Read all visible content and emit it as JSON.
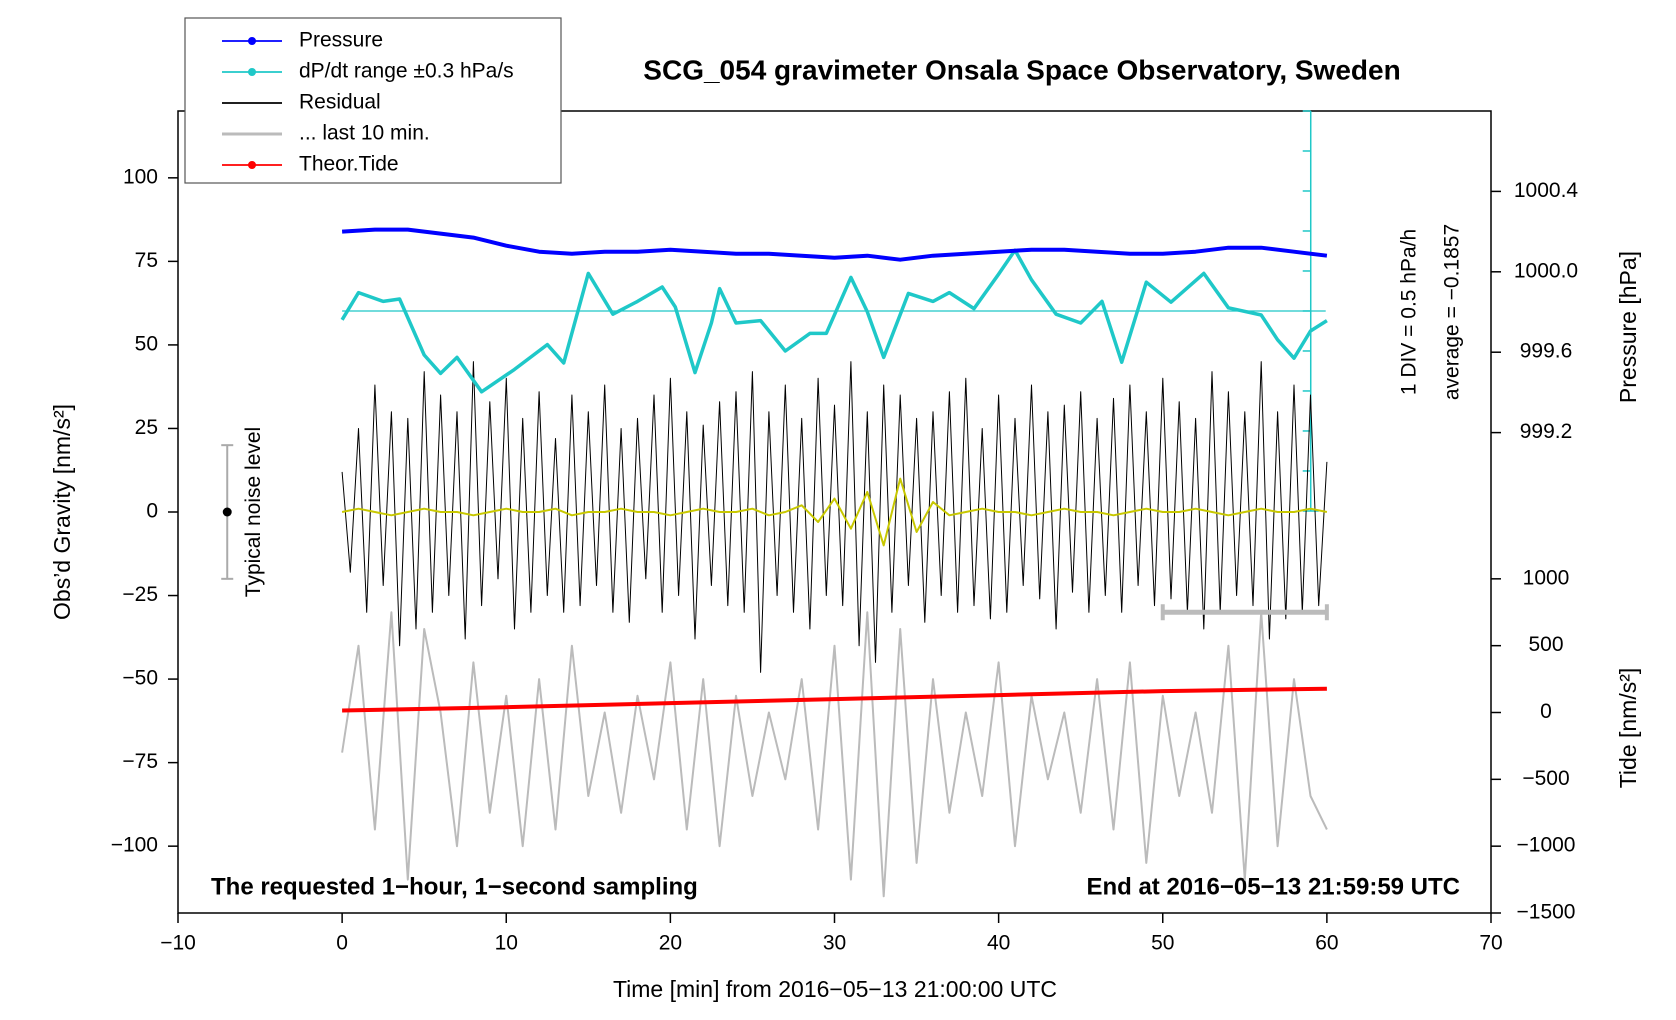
{
  "chart_data": {
    "type": "line",
    "title": "SCG_054 gravimeter Onsala Space Observatory, Sweden",
    "x_label": "Time [min] from 2016−05−13 21:00:00 UTC",
    "y_label": "Obs’d Gravity [nm/s²]",
    "y2_label": "Pressure [hPa]",
    "y3_label": "Tide [nm/s²]",
    "annotations": [
      "The requested 1−hour, 1−second sampling",
      "End at 2016−05−13 21:59:59 UTC",
      "1 DIV = 0.5 hPa/h",
      "average = −0.1857"
    ],
    "xlim": [
      -10,
      70
    ],
    "xticks": [
      {
        "value": -10,
        "label": "−10"
      },
      0,
      10,
      20,
      30,
      40,
      50,
      60,
      70
    ],
    "ylim": [
      -120,
      120
    ],
    "yticks": [
      {
        "value": -100,
        "label": "−100"
      },
      {
        "value": -75,
        "label": "−75"
      },
      {
        "value": -50,
        "label": "−50"
      },
      {
        "value": -25,
        "label": "−25"
      },
      0,
      25,
      50,
      75,
      100
    ],
    "y2lim": [
      996.81,
      1000.8
    ],
    "y2ticks": [
      999.2,
      999.6,
      {
        "value": 1000.0,
        "label": "1000.0"
      },
      1000.4
    ],
    "y3lim": [
      -1500,
      4500
    ],
    "y3ticks": [
      {
        "value": -1500,
        "label": "−1500"
      },
      {
        "value": -1000,
        "label": "−1000"
      },
      {
        "value": -500,
        "label": "−500"
      },
      0,
      500,
      1000
    ],
    "y4lim": [
      -2.5,
      2.5
    ],
    "y4ticks": [
      -2.5,
      -2,
      -1.5,
      -1,
      -0.5,
      0,
      0.5,
      1,
      1.5,
      2,
      2.5
    ],
    "dpdt_reference": 0,
    "legend": "outside-top-left",
    "noise_level": {
      "x": -7,
      "value": 0,
      "error": 20,
      "label": "Typical noise level"
    },
    "last_10_min_span": {
      "x": [
        50,
        60
      ],
      "value": -30
    },
    "series": [
      {
        "name": "Pressure",
        "color": "#0000ff",
        "axis": "y2",
        "marker": true,
        "x": [
          0,
          2,
          4,
          6,
          8,
          10,
          12,
          14,
          16,
          18,
          20,
          22,
          24,
          26,
          28,
          30,
          32,
          34,
          36,
          38,
          40,
          42,
          44,
          46,
          48,
          50,
          52,
          54,
          56,
          58,
          60
        ],
        "values": [
          1000.2,
          1000.21,
          1000.21,
          1000.19,
          1000.17,
          1000.13,
          1000.1,
          1000.09,
          1000.1,
          1000.1,
          1000.11,
          1000.1,
          1000.09,
          1000.09,
          1000.08,
          1000.07,
          1000.08,
          1000.06,
          1000.08,
          1000.09,
          1000.1,
          1000.11,
          1000.11,
          1000.1,
          1000.09,
          1000.09,
          1000.1,
          1000.12,
          1000.12,
          1000.1,
          1000.08
        ]
      },
      {
        "name": "dP/dt range ±0.3 hPa/s",
        "color": "#1fc8c8",
        "axis": "y4",
        "marker": true,
        "x": [
          0,
          1,
          2.5,
          3.5,
          5,
          6,
          7,
          8.5,
          10.5,
          12.5,
          13.5,
          15,
          16.5,
          18,
          19.5,
          20.3,
          21.5,
          22.5,
          23,
          24,
          25.5,
          27,
          28.5,
          29.5,
          31,
          32,
          33,
          34.5,
          36,
          37,
          38.5,
          40,
          41,
          42,
          43.5,
          45,
          46.3,
          47.5,
          49,
          50.5,
          52.5,
          54,
          56,
          57,
          58,
          59,
          60
        ],
        "values": [
          -0.11,
          0.23,
          0.12,
          0.15,
          -0.55,
          -0.78,
          -0.58,
          -1.01,
          -0.73,
          -0.42,
          -0.65,
          0.47,
          -0.04,
          0.12,
          0.3,
          0.05,
          -0.77,
          -0.15,
          0.28,
          -0.15,
          -0.12,
          -0.5,
          -0.28,
          -0.28,
          0.42,
          -0.01,
          -0.58,
          0.22,
          0.12,
          0.23,
          0.03,
          0.46,
          0.76,
          0.39,
          -0.04,
          -0.15,
          0.12,
          -0.64,
          0.36,
          0.11,
          0.47,
          0.04,
          -0.05,
          -0.36,
          -0.59,
          -0.25,
          -0.12
        ]
      },
      {
        "name": "Residual",
        "color": "#000000",
        "axis": "y",
        "x": [
          0,
          0.5,
          1,
          1.5,
          2,
          2.5,
          3,
          3.5,
          4,
          4.5,
          5,
          5.5,
          6,
          6.5,
          7,
          7.5,
          8,
          8.5,
          9,
          9.5,
          10,
          10.5,
          11,
          11.5,
          12,
          12.5,
          13,
          13.5,
          14,
          14.5,
          15,
          15.5,
          16,
          16.5,
          17,
          17.5,
          18,
          18.5,
          19,
          19.5,
          20,
          20.5,
          21,
          21.5,
          22,
          22.5,
          23,
          23.5,
          24,
          24.5,
          25,
          25.5,
          26,
          26.5,
          27,
          27.5,
          28,
          28.5,
          29,
          29.5,
          30,
          30.5,
          31,
          31.5,
          32,
          32.5,
          33,
          33.5,
          34,
          34.5,
          35,
          35.5,
          36,
          36.5,
          37,
          37.5,
          38,
          38.5,
          39,
          39.5,
          40,
          40.5,
          41,
          41.5,
          42,
          42.5,
          43,
          43.5,
          44,
          44.5,
          45,
          45.5,
          46,
          46.5,
          47,
          47.5,
          48,
          48.5,
          49,
          49.5,
          50,
          50.5,
          51,
          51.5,
          52,
          52.5,
          53,
          53.5,
          54,
          54.5,
          55,
          55.5,
          56,
          56.5,
          57,
          57.5,
          58,
          58.5,
          59,
          59.5,
          60
        ],
        "values": [
          12,
          -18,
          25,
          -30,
          38,
          -22,
          30,
          -40,
          28,
          -35,
          42,
          -30,
          35,
          -25,
          30,
          -38,
          45,
          -28,
          33,
          -20,
          40,
          -35,
          28,
          -30,
          36,
          -25,
          22,
          -30,
          35,
          -28,
          30,
          -22,
          38,
          -30,
          25,
          -33,
          28,
          -20,
          35,
          -30,
          40,
          -25,
          30,
          -38,
          26,
          -22,
          33,
          -28,
          36,
          -30,
          42,
          -48,
          30,
          -25,
          38,
          -30,
          28,
          -35,
          40,
          -25,
          32,
          -28,
          45,
          -40,
          30,
          -45,
          38,
          -30,
          35,
          -22,
          28,
          -33,
          30,
          -25,
          36,
          -30,
          40,
          -28,
          25,
          -32,
          35,
          -30,
          28,
          -22,
          38,
          -26,
          30,
          -35,
          32,
          -24,
          36,
          -30,
          28,
          -25,
          34,
          -30,
          38,
          -22,
          30,
          -28,
          40,
          -26,
          33,
          -30,
          28,
          -35,
          42,
          -30,
          36,
          -25,
          30,
          -28,
          45,
          -38,
          30,
          -32,
          38,
          -30,
          35,
          -28,
          15
        ]
      },
      {
        "name": "... last 10 min.",
        "color": "#bbbbbb",
        "axis": "y",
        "x": [
          0,
          1,
          2,
          3,
          4,
          5,
          6,
          7,
          8,
          9,
          10,
          11,
          12,
          13,
          14,
          15,
          16,
          17,
          18,
          19,
          20,
          21,
          22,
          23,
          24,
          25,
          26,
          27,
          28,
          29,
          30,
          31,
          32,
          33,
          34,
          35,
          36,
          37,
          38,
          39,
          40,
          41,
          42,
          43,
          44,
          45,
          46,
          47,
          48,
          49,
          50,
          51,
          52,
          53,
          54,
          55,
          56,
          57,
          58,
          59,
          60
        ],
        "values": [
          -72,
          -40,
          -95,
          -30,
          -110,
          -35,
          -60,
          -100,
          -45,
          -90,
          -55,
          -100,
          -50,
          -95,
          -40,
          -85,
          -60,
          -90,
          -55,
          -80,
          -45,
          -95,
          -50,
          -100,
          -55,
          -85,
          -60,
          -80,
          -50,
          -95,
          -40,
          -110,
          -30,
          -115,
          -35,
          -105,
          -50,
          -90,
          -60,
          -85,
          -45,
          -100,
          -55,
          -80,
          -60,
          -90,
          -50,
          -95,
          -45,
          -105,
          -55,
          -85,
          -60,
          -90,
          -40,
          -110,
          -30,
          -100,
          -50,
          -85,
          -95
        ]
      },
      {
        "name": "Theor.Tide",
        "color": "#ff0000",
        "axis": "y3",
        "marker": true,
        "x": [
          0,
          10,
          20,
          30,
          40,
          50,
          60
        ],
        "values": [
          15,
          40,
          70,
          100,
          130,
          160,
          178
        ]
      },
      {
        "color": "#c8c800",
        "axis": "y",
        "x": [
          0,
          1,
          2,
          3,
          4,
          5,
          6,
          7,
          8,
          9,
          10,
          11,
          12,
          13,
          14,
          15,
          16,
          17,
          18,
          19,
          20,
          21,
          22,
          23,
          24,
          25,
          26,
          27,
          28,
          29,
          30,
          31,
          32,
          33,
          34,
          35,
          36,
          37,
          38,
          39,
          40,
          41,
          42,
          43,
          44,
          45,
          46,
          47,
          48,
          49,
          50,
          51,
          52,
          53,
          54,
          55,
          56,
          57,
          58,
          59,
          60
        ],
        "values": [
          0,
          1,
          0,
          -1,
          0,
          1,
          0,
          0,
          -1,
          0,
          1,
          0,
          0,
          1,
          -1,
          0,
          0,
          1,
          0,
          0,
          -1,
          0,
          1,
          0,
          0,
          1,
          -1,
          0,
          2,
          -3,
          4,
          -5,
          6,
          -10,
          10,
          -6,
          3,
          -1,
          0,
          1,
          0,
          0,
          -1,
          0,
          1,
          0,
          0,
          -1,
          0,
          1,
          0,
          0,
          1,
          0,
          -1,
          0,
          1,
          0,
          0,
          1,
          0
        ]
      }
    ]
  }
}
